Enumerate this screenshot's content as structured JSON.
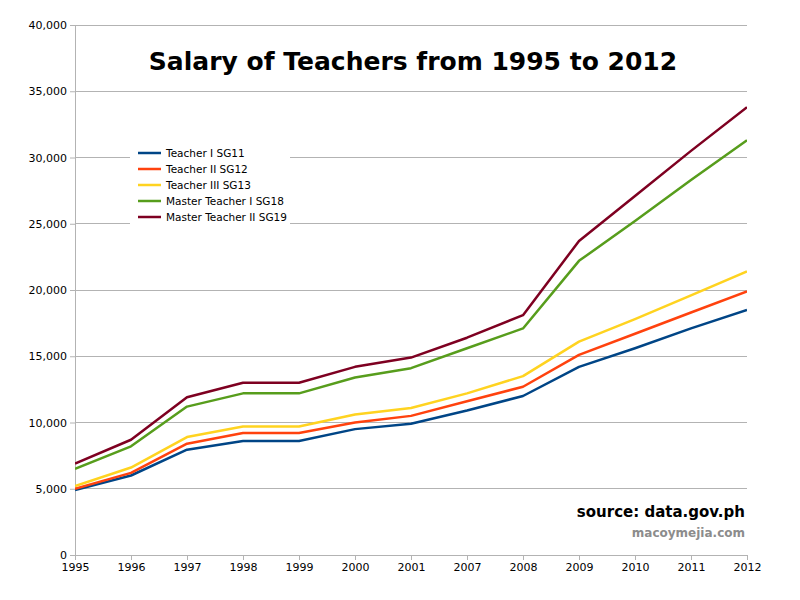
{
  "chart_data": {
    "type": "line",
    "title": "Salary of Teachers from 1995 to 2012",
    "categories": [
      "1995",
      "1996",
      "1997",
      "1998",
      "1999",
      "2000",
      "2001",
      "2007",
      "2008",
      "2009",
      "2010",
      "2011",
      "2012"
    ],
    "series": [
      {
        "name": "Teacher I SG11",
        "color": "#004586",
        "values": [
          4900,
          6000,
          7950,
          8600,
          8600,
          9500,
          9900,
          10900,
          12000,
          14200,
          15600,
          17100,
          18500
        ]
      },
      {
        "name": "Teacher II SG12",
        "color": "#ff420e",
        "values": [
          5000,
          6200,
          8400,
          9200,
          9200,
          10000,
          10500,
          11600,
          12700,
          15100,
          16700,
          18300,
          19900
        ]
      },
      {
        "name": "Teacher III SG13",
        "color": "#ffd320",
        "values": [
          5200,
          6600,
          8900,
          9700,
          9700,
          10600,
          11100,
          12200,
          13500,
          16100,
          17800,
          19600,
          21400
        ]
      },
      {
        "name": "Master Teacher I SG18",
        "color": "#579d1c",
        "values": [
          6500,
          8200,
          11200,
          12200,
          12200,
          13400,
          14100,
          15600,
          17100,
          22200,
          25200,
          28300,
          31300
        ]
      },
      {
        "name": "Master Teacher II SG19",
        "color": "#7e0021",
        "values": [
          6900,
          8700,
          11900,
          13000,
          13000,
          14200,
          14900,
          16400,
          18100,
          23700,
          27100,
          30500,
          33800
        ]
      }
    ],
    "ylim": [
      0,
      40000
    ],
    "yticks": [
      0,
      {
        "value": 5000,
        "label": "5,000"
      },
      {
        "value": 10000,
        "label": "10,000"
      },
      {
        "value": 15000,
        "label": "15,000"
      },
      {
        "value": 20000,
        "label": "20,000"
      },
      {
        "value": 25000,
        "label": "25,000"
      },
      {
        "value": 30000,
        "label": "30,000"
      },
      {
        "value": 35000,
        "label": "35,000"
      },
      {
        "value": 40000,
        "label": "40,000"
      }
    ],
    "grid": true,
    "legend": "top-left",
    "annotations": [
      "source: data.gov.ph",
      "macoymejia.com"
    ]
  }
}
